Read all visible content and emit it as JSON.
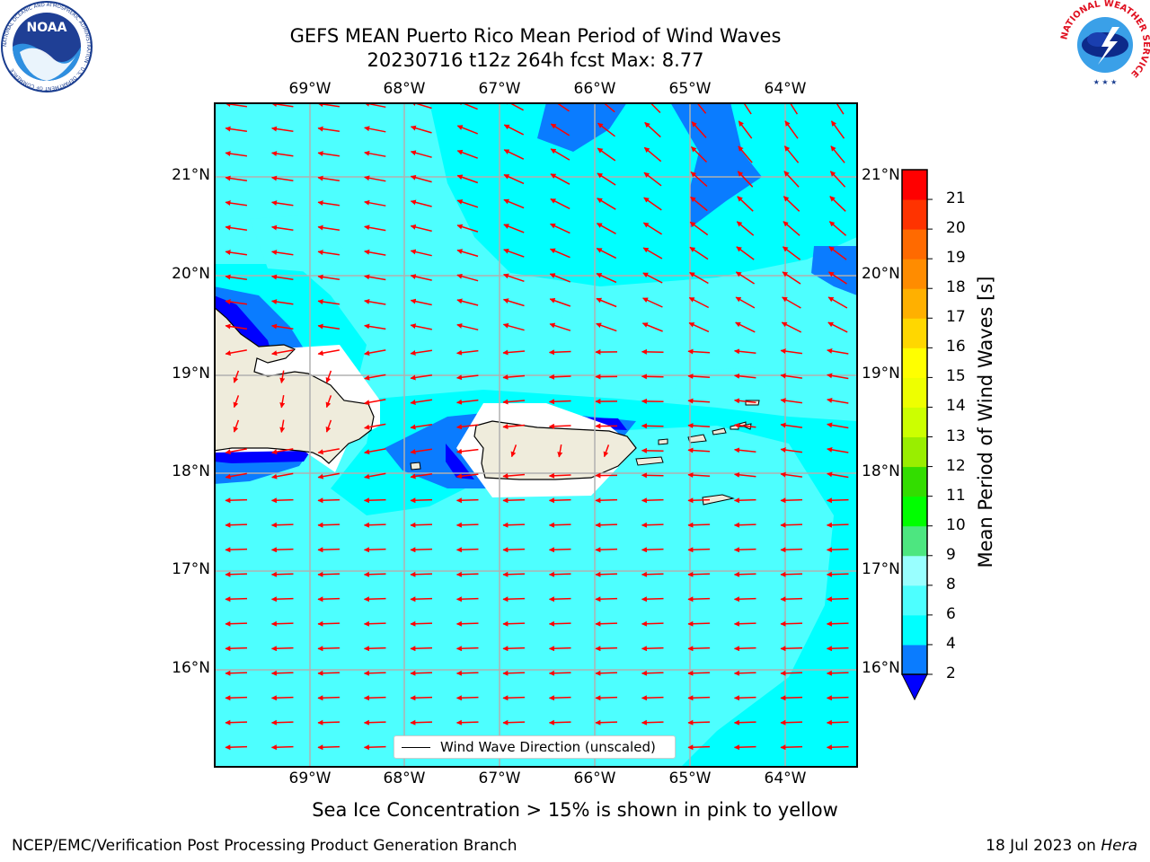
{
  "title": {
    "line1": "GEFS MEAN Puerto Rico Mean Period of Wind Waves",
    "line2": "20230716 t12z 264h fcst   Max: 8.77"
  },
  "map": {
    "lon_labels": [
      "69°W",
      "68°W",
      "67°W",
      "66°W",
      "65°W",
      "64°W"
    ],
    "lat_labels": [
      "21°N",
      "20°N",
      "19°N",
      "18°N",
      "17°N",
      "16°N"
    ],
    "land_color": "#efecdc",
    "arrow_color": "#ff0000",
    "gridline_color": "#b0b0b0"
  },
  "legend": {
    "label": "Wind Wave Direction (unscaled)"
  },
  "colorbar": {
    "label": "Mean Period of Wind Waves [s]",
    "ticks": [
      "2",
      "4",
      "6",
      "8",
      "9",
      "10",
      "11",
      "12",
      "13",
      "14",
      "15",
      "16",
      "17",
      "18",
      "19",
      "20",
      "21"
    ],
    "colors": [
      "#0a7cff",
      "#00ffff",
      "#4dffff",
      "#99ffff",
      "#4de680",
      "#00ff00",
      "#33dd00",
      "#99ee00",
      "#ccff00",
      "#eeff00",
      "#ffff00",
      "#ffd700",
      "#ffb000",
      "#ff8c00",
      "#ff6a00",
      "#ff3300",
      "#ff0000"
    ],
    "extend_color": "#0000ff"
  },
  "subtitle": "Sea Ice Concentration > 15% is shown in pink to yellow",
  "footer": {
    "left": "NCEP/EMC/Verification Post Processing Product Generation Branch",
    "date": "18 Jul 2023 on ",
    "host": "Hera"
  },
  "logos": {
    "noaa_text": "NOAA",
    "noaa_ring": "NATIONAL OCEANIC AND ATMOSPHERIC ADMINISTRATION · U.S. DEPARTMENT OF COMMERCE",
    "nws_ring": "NATIONAL WEATHER SERVICE"
  }
}
